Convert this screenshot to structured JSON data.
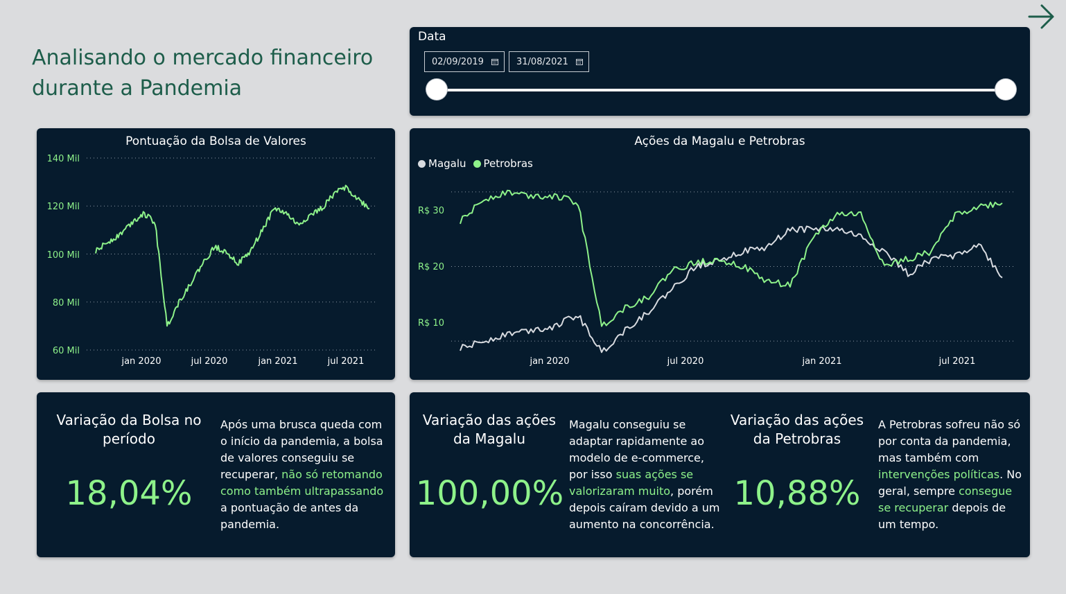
{
  "page": {
    "title_line1": "Analisando o mercado financeiro",
    "title_line2": "durante a Pandemia",
    "nav_icon": "arrow-right-icon"
  },
  "colors": {
    "accent": "#8ef28a",
    "panel": "#061b2d",
    "background": "#dbdcde",
    "title": "#1d5d4a",
    "magalu": "#d8dbe0"
  },
  "slicer": {
    "label": "Data",
    "start_date": "02/09/2019",
    "end_date": "31/08/2021",
    "range_fraction": [
      0,
      1
    ]
  },
  "bolsa_chart": {
    "title": "Pontuação da Bolsa de Valores",
    "y_ticks": [
      "140 Mil",
      "120 Mil",
      "100 Mil",
      "80 Mil",
      "60 Mil"
    ],
    "x_ticks": [
      "jan 2020",
      "jul 2020",
      "jan 2021",
      "jul 2021"
    ]
  },
  "acoes_chart": {
    "title": "Ações da Magalu e Petrobras",
    "legend": [
      "Magalu",
      "Petrobras"
    ],
    "y_ticks": [
      "R$ 30",
      "R$ 20",
      "R$ 10"
    ],
    "x_ticks": [
      "jan 2020",
      "jul 2020",
      "jan 2021",
      "jul 2021"
    ]
  },
  "chart_data": [
    {
      "type": "line",
      "title": "Pontuação da Bolsa de Valores",
      "ylim": [
        60000,
        140000
      ],
      "grid": true,
      "x": [
        "2019-09",
        "2019-10",
        "2019-11",
        "2019-12",
        "2020-01",
        "2020-02",
        "2020-03",
        "2020-04",
        "2020-05",
        "2020-06",
        "2020-07",
        "2020-08",
        "2020-09",
        "2020-10",
        "2020-11",
        "2020-12",
        "2021-01",
        "2021-02",
        "2021-03",
        "2021-04",
        "2021-05",
        "2021-06",
        "2021-07",
        "2021-08"
      ],
      "series": [
        {
          "name": "",
          "color": "#8ef28a",
          "values": [
            101000,
            105000,
            108000,
            113000,
            117000,
            113000,
            70000,
            80000,
            88000,
            96000,
            103000,
            101000,
            96000,
            101000,
            110000,
            119000,
            117000,
            112000,
            116000,
            119000,
            125000,
            128000,
            123000,
            119000
          ]
        }
      ]
    },
    {
      "type": "line",
      "title": "Ações da Magalu e Petrobras",
      "ylim": [
        5,
        35
      ],
      "grid": true,
      "legend_position": "top-left",
      "x": [
        "2019-09",
        "2019-10",
        "2019-11",
        "2019-12",
        "2020-01",
        "2020-02",
        "2020-03",
        "2020-04",
        "2020-05",
        "2020-06",
        "2020-07",
        "2020-08",
        "2020-09",
        "2020-10",
        "2020-11",
        "2020-12",
        "2021-01",
        "2021-02",
        "2021-03",
        "2021-04",
        "2021-05",
        "2021-06",
        "2021-07",
        "2021-08"
      ],
      "series": [
        {
          "name": "Magalu",
          "color": "#d8dbe0",
          "values": [
            9,
            10,
            11,
            11.5,
            12,
            13.5,
            8.5,
            11.5,
            14,
            17,
            20,
            21,
            22,
            22.5,
            25,
            25,
            25,
            24,
            22,
            19,
            21,
            21.5,
            23,
            18.5
          ]
        },
        {
          "name": "Petrobras",
          "color": "#8ef28a",
          "values": [
            26,
            29,
            30,
            29.5,
            29.5,
            28.5,
            12,
            14.5,
            16,
            19.5,
            20.5,
            21,
            20,
            18,
            17.5,
            24,
            27,
            27,
            20,
            21,
            22,
            27,
            28,
            28.5
          ]
        }
      ]
    }
  ],
  "kpis": [
    {
      "title_line1": "Variação da Bolsa no",
      "title_line2": "período",
      "value": "18,04%",
      "text_1": "Após uma brusca queda com",
      "text_2": "o início da pandemia, a bolsa",
      "text_3": "de valores conseguiu se",
      "text_4a": "recuperar, ",
      "text_4b": "não só retomando",
      "text_5": "como também ultrapassando",
      "text_6": "a pontuação de antes da",
      "text_7": "pandemia."
    },
    {
      "title_line1": "Variação das ações",
      "title_line2": "da Magalu",
      "value": "100,00%",
      "text_1": "Magalu conseguiu se",
      "text_2": "adaptar rapidamente ao",
      "text_3": "modelo de e-commerce,",
      "text_4a": "por isso ",
      "text_4b": "suas ações se",
      "text_5a": "valorizaram muito",
      "text_5b": ", porém",
      "text_6": "depois caíram devido a um",
      "text_7": "aumento na concorrência."
    },
    {
      "title_line1": "Variação das ações",
      "title_line2": "da Petrobras",
      "value": "10,88%",
      "text_1": "A Petrobras sofreu não só",
      "text_2": "por conta da pandemia,",
      "text_3": "mas também com",
      "text_4a": "intervenções políticas",
      "text_4b": ". No",
      "text_5a": "geral, sempre ",
      "text_5b": "consegue",
      "text_6a": "se recuperar",
      "text_6b": " depois de",
      "text_7": "um tempo."
    }
  ]
}
